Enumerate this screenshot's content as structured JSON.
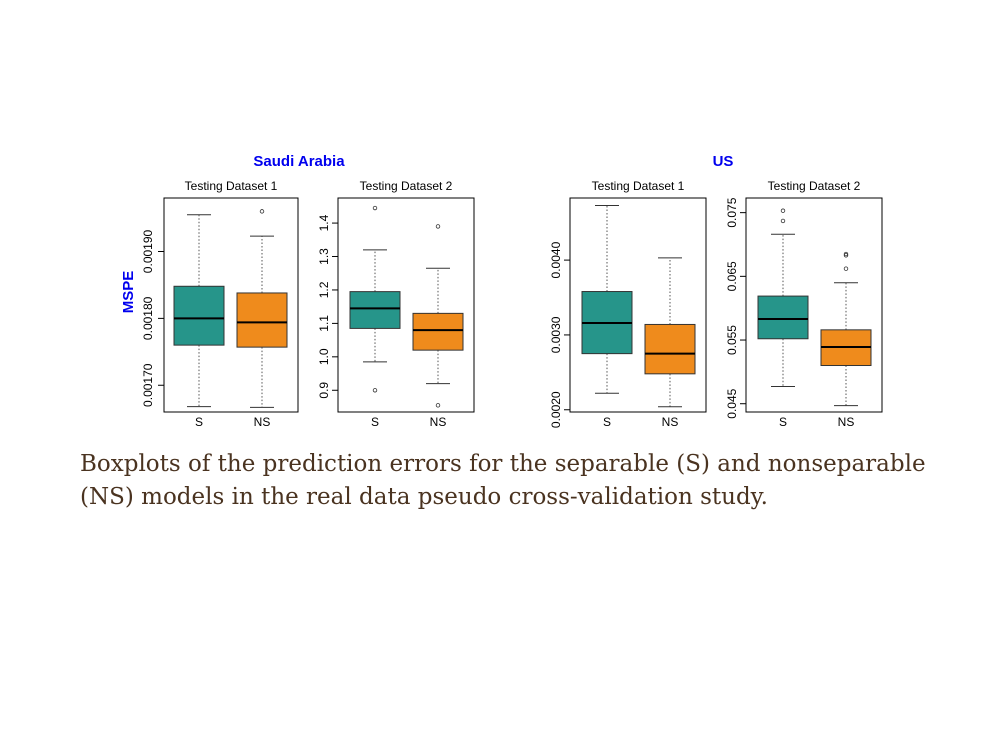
{
  "accent": "#0000ee",
  "colors": {
    "S": "#26958a",
    "NS": "#ef8b1c"
  },
  "group_titles": [
    "Saudi Arabia",
    "US"
  ],
  "ylabel": "MSPE",
  "caption": "Boxplots of the prediction errors for the separable (S) and nonseparable (NS) models in the real data pseudo cross-validation study.",
  "chart_data": [
    {
      "type": "boxplot",
      "group": "Saudi Arabia",
      "title": "Testing Dataset 1",
      "categories": [
        "S",
        "NS"
      ],
      "ylim": [
        0.00166,
        0.00198
      ],
      "yticks": [
        0.0017,
        0.0018,
        0.0019
      ],
      "ytick_labels": [
        "0.00170",
        "0.00180",
        "0.00190"
      ],
      "boxes": [
        {
          "name": "S",
          "min": 0.001668,
          "q1": 0.00176,
          "median": 0.0018,
          "q3": 0.001848,
          "max": 0.001955,
          "outliers": []
        },
        {
          "name": "NS",
          "min": 0.001667,
          "q1": 0.001757,
          "median": 0.001794,
          "q3": 0.001838,
          "max": 0.001923,
          "outliers": [
            0.00196
          ]
        }
      ]
    },
    {
      "type": "boxplot",
      "group": "Saudi Arabia",
      "title": "Testing Dataset 2",
      "categories": [
        "S",
        "NS"
      ],
      "ylim": [
        0.835,
        1.475
      ],
      "yticks": [
        0.9,
        1.0,
        1.1,
        1.2,
        1.3,
        1.4
      ],
      "ytick_labels": [
        "0.9",
        "1.0",
        "1.1",
        "1.2",
        "1.3",
        "1.4"
      ],
      "boxes": [
        {
          "name": "S",
          "min": 0.985,
          "q1": 1.085,
          "median": 1.145,
          "q3": 1.195,
          "max": 1.32,
          "outliers": [
            0.9,
            1.445
          ]
        },
        {
          "name": "NS",
          "min": 0.92,
          "q1": 1.02,
          "median": 1.08,
          "q3": 1.13,
          "max": 1.265,
          "outliers": [
            0.855,
            1.39
          ]
        }
      ]
    },
    {
      "type": "boxplot",
      "group": "US",
      "title": "Testing Dataset 1",
      "categories": [
        "S",
        "NS"
      ],
      "ylim": [
        0.00197,
        0.00483
      ],
      "yticks": [
        0.002,
        0.003,
        0.004
      ],
      "ytick_labels": [
        "0.0020",
        "0.0030",
        "0.0040"
      ],
      "boxes": [
        {
          "name": "S",
          "min": 0.00222,
          "q1": 0.00275,
          "median": 0.00316,
          "q3": 0.00358,
          "max": 0.00473,
          "outliers": []
        },
        {
          "name": "NS",
          "min": 0.00204,
          "q1": 0.00248,
          "median": 0.00275,
          "q3": 0.00314,
          "max": 0.00403,
          "outliers": []
        }
      ]
    },
    {
      "type": "boxplot",
      "group": "US",
      "title": "Testing Dataset 2",
      "categories": [
        "S",
        "NS"
      ],
      "ylim": [
        0.0437,
        0.0773
      ],
      "yticks": [
        0.045,
        0.055,
        0.065,
        0.075
      ],
      "ytick_labels": [
        "0.045",
        "0.055",
        "0.065",
        "0.075"
      ],
      "boxes": [
        {
          "name": "S",
          "min": 0.0477,
          "q1": 0.0552,
          "median": 0.0583,
          "q3": 0.0619,
          "max": 0.0716,
          "outliers": [
            0.0737,
            0.0753
          ]
        },
        {
          "name": "NS",
          "min": 0.0447,
          "q1": 0.051,
          "median": 0.0539,
          "q3": 0.0566,
          "max": 0.064,
          "outliers": [
            0.0662,
            0.0683,
            0.0685
          ]
        }
      ]
    }
  ]
}
